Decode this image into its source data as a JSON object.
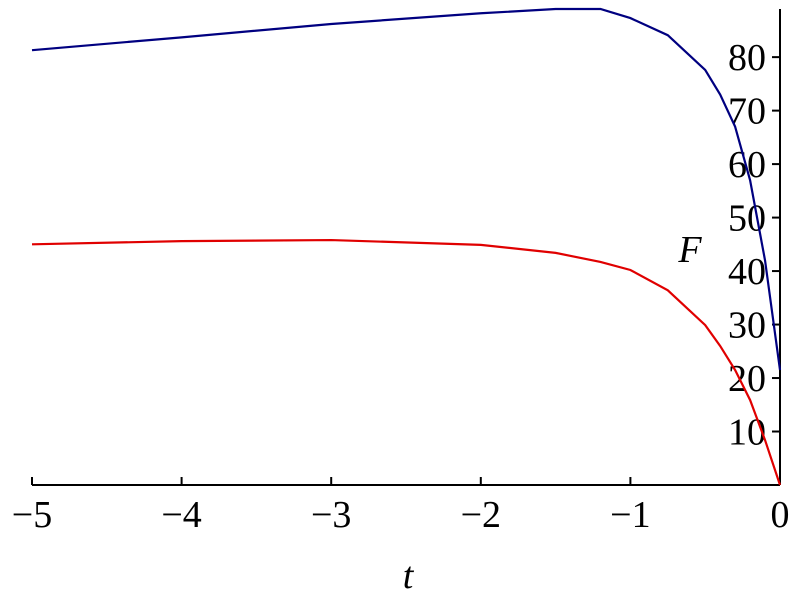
{
  "chart_data": {
    "type": "line",
    "x_label": "t",
    "y_label": "F",
    "x": [
      -5,
      -4,
      -3,
      -2,
      -1.5,
      -1.2,
      -1,
      -0.75,
      -0.5,
      -0.4,
      -0.3,
      -0.2,
      -0.1,
      0
    ],
    "series": [
      {
        "color": "#000080",
        "values": [
          81.3,
          83.7,
          86.2,
          88.2,
          89,
          89,
          87.3,
          84.1,
          77.6,
          73,
          67,
          57,
          42,
          21.5
        ]
      },
      {
        "color": "#e00000",
        "values": [
          45,
          45.6,
          45.8,
          44.9,
          43.4,
          41.7,
          40.2,
          36.4,
          29.9,
          26,
          21.5,
          15.9,
          8.4,
          0
        ]
      }
    ],
    "xlim": [
      -5,
      0
    ],
    "ylim": [
      0,
      89
    ],
    "xticks": [
      {
        "value": -5,
        "label": "−5"
      },
      {
        "value": -4,
        "label": "−4"
      },
      {
        "value": -3,
        "label": "−3"
      },
      {
        "value": -2,
        "label": "−2"
      },
      {
        "value": -1,
        "label": "−1"
      },
      0
    ],
    "yticks": [
      10,
      20,
      30,
      40,
      50,
      60,
      70,
      80
    ]
  }
}
